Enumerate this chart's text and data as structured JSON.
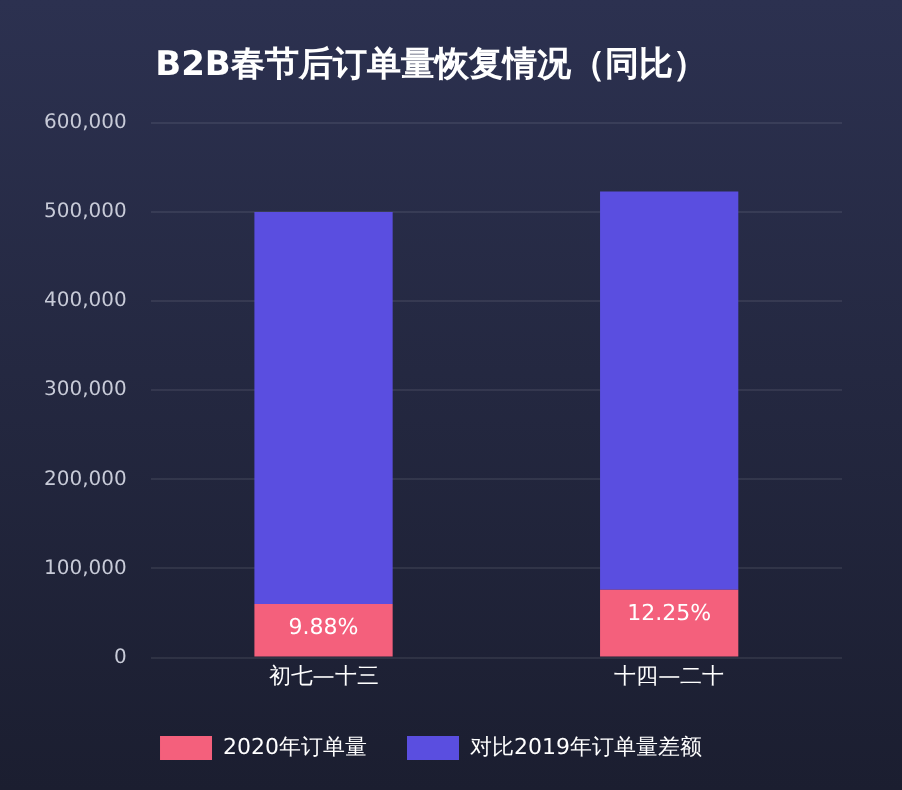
{
  "chart_data": {
    "type": "bar",
    "title": "B2B春节后订单量恢复情况（同比）",
    "categories": [
      "初七—十三",
      "十四—二十"
    ],
    "stacked": true,
    "series": [
      {
        "name": "2020年订单量",
        "color": "#f4607c",
        "values": [
          60000,
          76000
        ]
      },
      {
        "name": "对比2019年订单量差额",
        "color": "#5a4ee0",
        "values": [
          440000,
          447000
        ]
      }
    ],
    "ylim": [
      0,
      600000
    ],
    "yticks": [
      {
        "value": 0,
        "label": "0"
      },
      {
        "value": 100000,
        "label": "100,000"
      },
      {
        "value": 200000,
        "label": "200,000"
      },
      {
        "value": 300000,
        "label": "300,000"
      },
      {
        "value": 400000,
        "label": "400,000"
      },
      {
        "value": 500000,
        "label": "500,000"
      },
      {
        "value": 600000,
        "label": "600,000"
      }
    ],
    "annotations": [
      {
        "text": "9.88%",
        "x": "初七—十三",
        "y": 60000
      },
      {
        "text": "12.25%",
        "x": "十四—二十",
        "y": 76000
      }
    ],
    "grid": "y",
    "legend": "bottom"
  }
}
